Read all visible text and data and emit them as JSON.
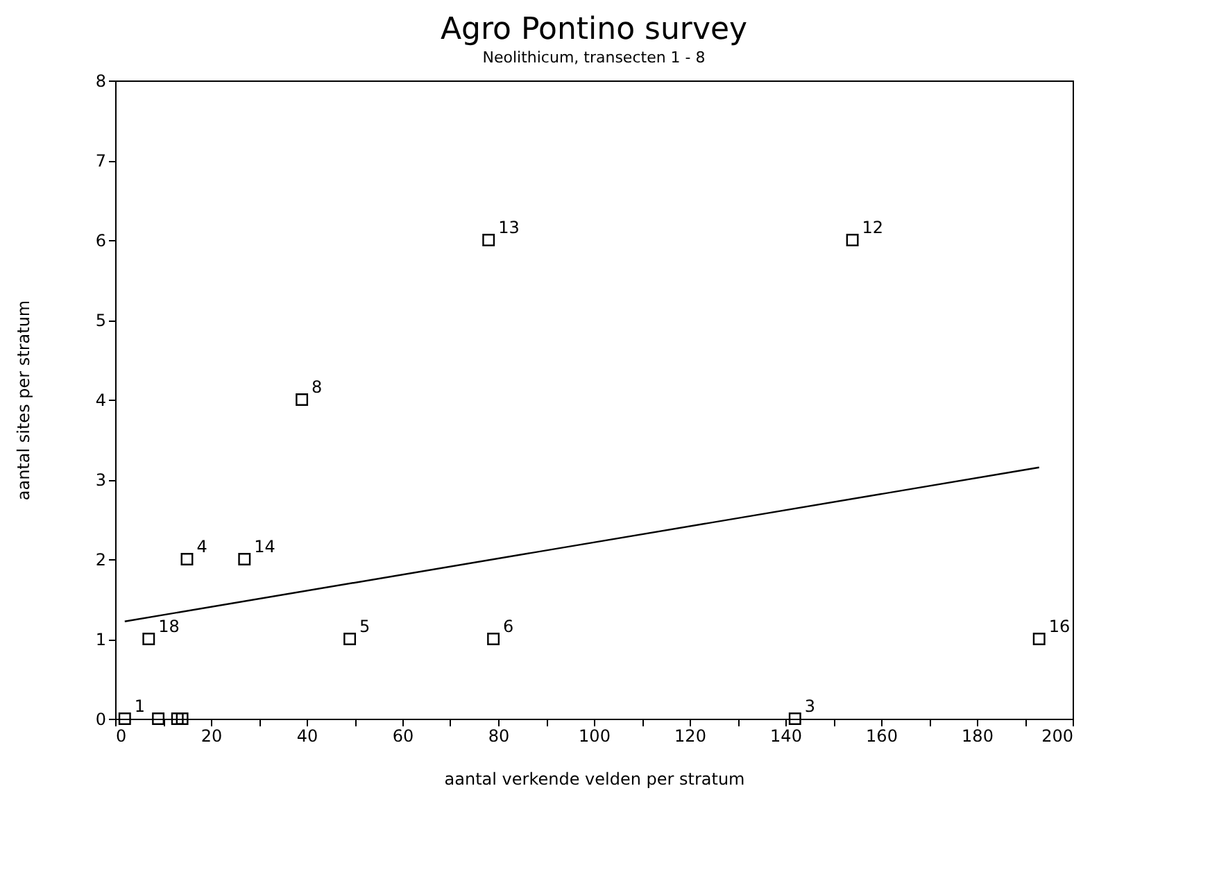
{
  "chart_data": {
    "type": "scatter",
    "title": "Agro Pontino survey",
    "subtitle": "Neolithicum, transecten 1 - 8",
    "xlabel": "aantal verkende velden per stratum",
    "ylabel": "aantal sites per stratum",
    "series": [
      {
        "color": "#000000",
        "marker": "square",
        "x": [
          78,
          154,
          39,
          15,
          27,
          7,
          49,
          79,
          193,
          142,
          2,
          9,
          13,
          14
        ],
        "values": [
          6,
          6,
          4,
          2,
          2,
          1,
          1,
          1,
          1,
          0,
          0,
          0,
          0,
          0
        ]
      },
      {
        "type": "line",
        "color": "#000000",
        "line_style": "solid",
        "marker": "none",
        "x": [
          2,
          193
        ],
        "values": [
          1.22,
          3.15
        ]
      }
    ],
    "annotations": [
      {
        "text": "13",
        "x": 78,
        "y": 6
      },
      {
        "text": "12",
        "x": 154,
        "y": 6
      },
      {
        "text": "8",
        "x": 39,
        "y": 4
      },
      {
        "text": "4",
        "x": 15,
        "y": 2
      },
      {
        "text": "14",
        "x": 27,
        "y": 2
      },
      {
        "text": "18",
        "x": 7,
        "y": 1
      },
      {
        "text": "5",
        "x": 49,
        "y": 1
      },
      {
        "text": "6",
        "x": 79,
        "y": 1
      },
      {
        "text": "16",
        "x": 193,
        "y": 1
      },
      {
        "text": "3",
        "x": 142,
        "y": 0
      },
      {
        "text": "1",
        "x": 2,
        "y": 0
      }
    ],
    "xlim": [
      0,
      200
    ],
    "xticks": [
      0,
      {
        "value": 10,
        "label": null
      },
      20,
      {
        "value": 30,
        "label": null
      },
      40,
      {
        "value": 50,
        "label": null
      },
      60,
      {
        "value": 70,
        "label": null
      },
      80,
      {
        "value": 90,
        "label": null
      },
      100,
      {
        "value": 110,
        "label": null
      },
      120,
      {
        "value": 130,
        "label": null
      },
      140,
      {
        "value": 150,
        "label": null
      },
      160,
      {
        "value": 170,
        "label": null
      },
      180,
      {
        "value": 190,
        "label": null
      },
      200
    ],
    "ylim": [
      0,
      8
    ],
    "yticks": [
      0,
      1,
      2,
      3,
      4,
      5,
      6,
      7,
      8
    ],
    "grid": false
  }
}
